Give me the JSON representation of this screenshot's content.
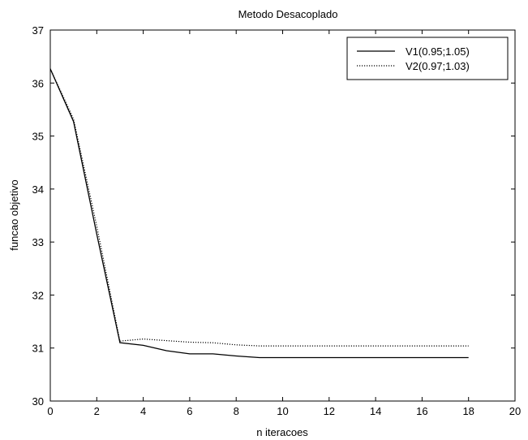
{
  "chart_data": {
    "type": "line",
    "title": "Metodo Desacoplado",
    "xlabel": "n iteracoes",
    "ylabel": "funcao objetivo",
    "xlim": [
      0,
      20
    ],
    "ylim": [
      30,
      37
    ],
    "xticks": [
      "0",
      "2",
      "4",
      "6",
      "8",
      "10",
      "12",
      "14",
      "16",
      "18",
      "20"
    ],
    "yticks": [
      "30",
      "31",
      "32",
      "33",
      "34",
      "35",
      "36",
      "37"
    ],
    "grid": false,
    "legend_position": "top-right",
    "series": [
      {
        "name": "V1(0.95;1.05)",
        "style": "solid",
        "color": "#000000",
        "x": [
          0,
          1,
          2,
          3,
          4,
          5,
          6,
          7,
          8,
          9,
          10,
          11,
          12,
          13,
          14,
          15,
          16,
          17,
          18
        ],
        "y": [
          36.27,
          35.27,
          33.15,
          31.1,
          31.05,
          30.95,
          30.89,
          30.89,
          30.85,
          30.82,
          30.82,
          30.82,
          30.82,
          30.82,
          30.82,
          30.82,
          30.82,
          30.82,
          30.82
        ]
      },
      {
        "name": "V2(0.97;1.03)",
        "style": "dotted",
        "color": "#000000",
        "x": [
          0,
          1,
          2,
          3,
          4,
          5,
          6,
          7,
          8,
          9,
          10,
          11,
          12,
          13,
          14,
          15,
          16,
          17,
          18
        ],
        "y": [
          36.27,
          35.32,
          33.3,
          31.13,
          31.17,
          31.14,
          31.11,
          31.1,
          31.06,
          31.04,
          31.04,
          31.04,
          31.04,
          31.04,
          31.04,
          31.04,
          31.04,
          31.04,
          31.04
        ]
      }
    ]
  }
}
